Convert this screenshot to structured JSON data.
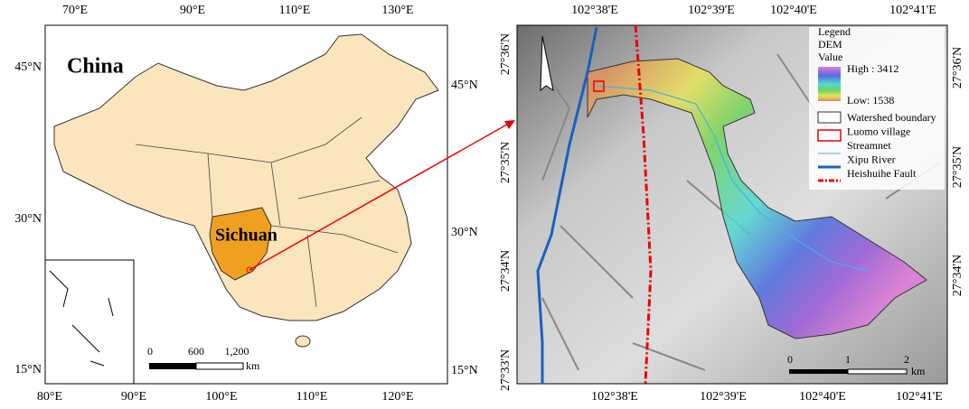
{
  "left_map": {
    "title": "China",
    "region_label": "Sichuan",
    "top_ticks": [
      "70°E",
      "90°E",
      "110°E",
      "130°E"
    ],
    "bottom_ticks": [
      "80°E",
      "90°E",
      "100°E",
      "110°E",
      "120°E"
    ],
    "left_ticks": [
      "45°N",
      "30°N",
      "15°N"
    ],
    "right_ticks": [
      "45°N",
      "30°N",
      "15°N"
    ],
    "scale": {
      "ticks": [
        "0",
        "600",
        "1,200"
      ],
      "unit": "km"
    }
  },
  "right_map": {
    "top_ticks": [
      "102°38'E",
      "102°39'E",
      "102°40'E",
      "102°41'E"
    ],
    "bottom_ticks": [
      "102°38'E",
      "102°39'E",
      "102°40'E",
      "102°41'E"
    ],
    "left_ticks": [
      "27°36'N",
      "27°35'N",
      "27°34'N",
      "27°33'N"
    ],
    "right_ticks": [
      "27°36'N",
      "27°35'N",
      "27°34'N"
    ],
    "scale": {
      "ticks": [
        "0",
        "1",
        "2"
      ],
      "unit": "km"
    },
    "legend": {
      "title": "Legend",
      "layer": "DEM",
      "field": "Value",
      "high": "High : 3412",
      "low": "Low: 1538",
      "items": [
        "Watershed boundary",
        "Luomo village",
        "Streamnet",
        "Xipu River",
        "Heishuihe Fault"
      ]
    }
  }
}
